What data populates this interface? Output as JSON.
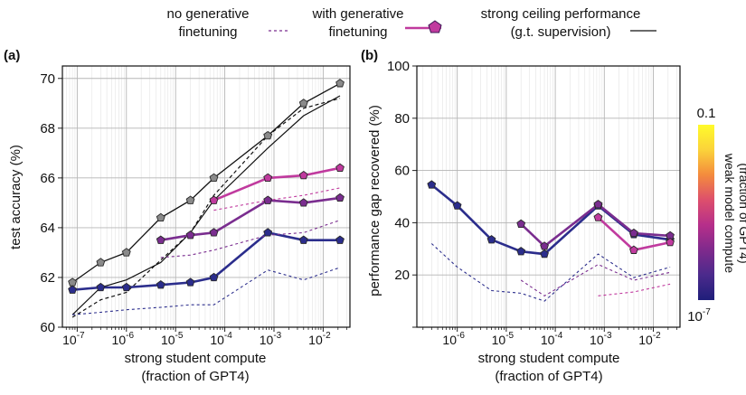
{
  "legend": {
    "no_gen": [
      "no generative",
      "finetuning"
    ],
    "with_gen": [
      "with generative",
      "finetuning"
    ],
    "ceiling": [
      "strong ceiling performance",
      "(g.t. supervision)"
    ]
  },
  "colorbar": {
    "label": [
      "weak model compute",
      "(fraction of GPT4)"
    ],
    "top": "0.1",
    "bottom": "10",
    "bottom_exp": "-7",
    "colors": [
      "#1f1e7a",
      "#4b2a8c",
      "#7f2a8c",
      "#b62f8a",
      "#dd4f6c",
      "#f48b3d",
      "#fbd33a",
      "#fffb2a"
    ]
  },
  "chart_data": [
    {
      "panel": "(a)",
      "type": "line",
      "xscale": "log",
      "xlabel": [
        "strong student compute",
        "(fraction of GPT4)"
      ],
      "ylabel": "test accuracy (%)",
      "xlim": [
        5e-08,
        0.035
      ],
      "ylim": [
        60,
        70.5
      ],
      "yticks": [
        60,
        62,
        64,
        66,
        68,
        70
      ],
      "xticks": [
        1e-07,
        1e-06,
        1e-05,
        0.0001,
        0.001,
        0.01
      ],
      "xtick_labels": [
        "10",
        "10",
        "10",
        "10",
        "10",
        "10"
      ],
      "xtick_exps": [
        "-7",
        "-6",
        "-5",
        "-4",
        "-3",
        "-2"
      ],
      "series": [
        {
          "color": "#555555",
          "style": "solid-gray-markers",
          "x": [
            8e-08,
            3e-07,
            1e-06,
            5e-06,
            2e-05,
            6e-05,
            0.00075,
            0.004,
            0.022
          ],
          "y": [
            61.8,
            62.6,
            63.0,
            64.4,
            65.1,
            66.0,
            67.7,
            69.0,
            69.8
          ]
        },
        {
          "color": "#111111",
          "style": "black-solid",
          "x": [
            8e-08,
            3e-07,
            1e-06,
            5e-06,
            2e-05,
            6e-05,
            0.00075,
            0.004,
            0.022
          ],
          "y": [
            60.5,
            61.6,
            61.9,
            62.6,
            63.8,
            65.1,
            67.2,
            68.5,
            69.3
          ]
        },
        {
          "color": "#111111",
          "style": "black-dashed",
          "x": [
            8e-08,
            3e-07,
            1e-06,
            5e-06,
            2e-05,
            6e-05,
            0.00075,
            0.004,
            0.022
          ],
          "y": [
            60.4,
            61.1,
            61.4,
            62.7,
            63.8,
            65.3,
            67.7,
            68.8,
            69.2
          ]
        },
        {
          "color": "#2b2d8c",
          "style": "solid-markers",
          "x": [
            8e-08,
            3e-07,
            1e-06,
            5e-06,
            2e-05,
            6e-05,
            0.00075,
            0.004,
            0.022
          ],
          "y": [
            61.5,
            61.6,
            61.6,
            61.7,
            61.8,
            62.0,
            63.8,
            63.5,
            63.5
          ]
        },
        {
          "color": "#2b2d8c",
          "style": "dashed",
          "x": [
            8e-08,
            3e-07,
            1e-06,
            5e-06,
            2e-05,
            6e-05,
            0.00075,
            0.004,
            0.022
          ],
          "y": [
            60.5,
            60.6,
            60.7,
            60.8,
            60.9,
            60.9,
            62.3,
            61.9,
            62.4
          ]
        },
        {
          "color": "#7a2d8f",
          "style": "solid-markers",
          "x": [
            5e-06,
            2e-05,
            6e-05,
            0.00075,
            0.004,
            0.022
          ],
          "y": [
            63.5,
            63.7,
            63.8,
            65.1,
            65.0,
            65.2
          ]
        },
        {
          "color": "#7a2d8f",
          "style": "dashed",
          "x": [
            5e-06,
            2e-05,
            6e-05,
            0.00075,
            0.004,
            0.022
          ],
          "y": [
            62.8,
            62.9,
            63.1,
            63.7,
            63.8,
            64.3
          ]
        },
        {
          "color": "#c03a9e",
          "style": "solid-markers",
          "x": [
            6e-05,
            0.00075,
            0.004,
            0.022
          ],
          "y": [
            65.1,
            66.0,
            66.1,
            66.4
          ]
        },
        {
          "color": "#c03a9e",
          "style": "dashed",
          "x": [
            6e-05,
            0.00075,
            0.004,
            0.022
          ],
          "y": [
            64.7,
            65.1,
            65.3,
            65.6
          ]
        }
      ]
    },
    {
      "panel": "(b)",
      "type": "line",
      "xscale": "log",
      "xlabel": [
        "strong student compute",
        "(fraction of GPT4)"
      ],
      "ylabel": "performance gap recovered (%)",
      "xlim": [
        1.5e-07,
        0.035
      ],
      "ylim": [
        0,
        100
      ],
      "yticks": [
        0,
        20,
        40,
        60,
        80,
        100
      ],
      "ytick_labels": [
        "",
        "20",
        "40",
        "60",
        "80",
        "100"
      ],
      "xticks": [
        1e-06,
        1e-05,
        0.0001,
        0.001,
        0.01
      ],
      "xtick_labels": [
        "10",
        "10",
        "10",
        "10",
        "10"
      ],
      "xtick_exps": [
        "-6",
        "-5",
        "-4",
        "-3",
        "-2"
      ],
      "series": [
        {
          "color": "#2b2d8c",
          "style": "solid-markers",
          "x": [
            3e-07,
            1e-06,
            5e-06,
            2e-05,
            6e-05,
            0.00075,
            0.004,
            0.022
          ],
          "y": [
            54.5,
            46.5,
            33.5,
            29.0,
            28.0,
            46.5,
            35.5,
            33.5
          ]
        },
        {
          "color": "#2b2d8c",
          "style": "dashed",
          "x": [
            3e-07,
            1e-06,
            5e-06,
            2e-05,
            6e-05,
            0.00075,
            0.004,
            0.022
          ],
          "y": [
            32.0,
            23.0,
            14.0,
            13.0,
            10.0,
            28.0,
            19.0,
            23.0
          ]
        },
        {
          "color": "#7a2d8f",
          "style": "solid-markers",
          "x": [
            2e-05,
            6e-05,
            0.00075,
            0.004,
            0.022
          ],
          "y": [
            39.5,
            31.0,
            47.0,
            36.0,
            35.0
          ]
        },
        {
          "color": "#7a2d8f",
          "style": "dashed",
          "x": [
            2e-05,
            6e-05,
            0.00075,
            0.004,
            0.022
          ],
          "y": [
            18.0,
            12.0,
            24.0,
            18.0,
            21.0
          ]
        },
        {
          "color": "#c03a9e",
          "style": "solid-markers",
          "x": [
            0.00075,
            0.004,
            0.022
          ],
          "y": [
            42.0,
            29.5,
            32.5
          ]
        },
        {
          "color": "#c03a9e",
          "style": "dashed",
          "x": [
            0.00075,
            0.004,
            0.022
          ],
          "y": [
            12.0,
            13.5,
            16.5
          ]
        }
      ]
    }
  ]
}
